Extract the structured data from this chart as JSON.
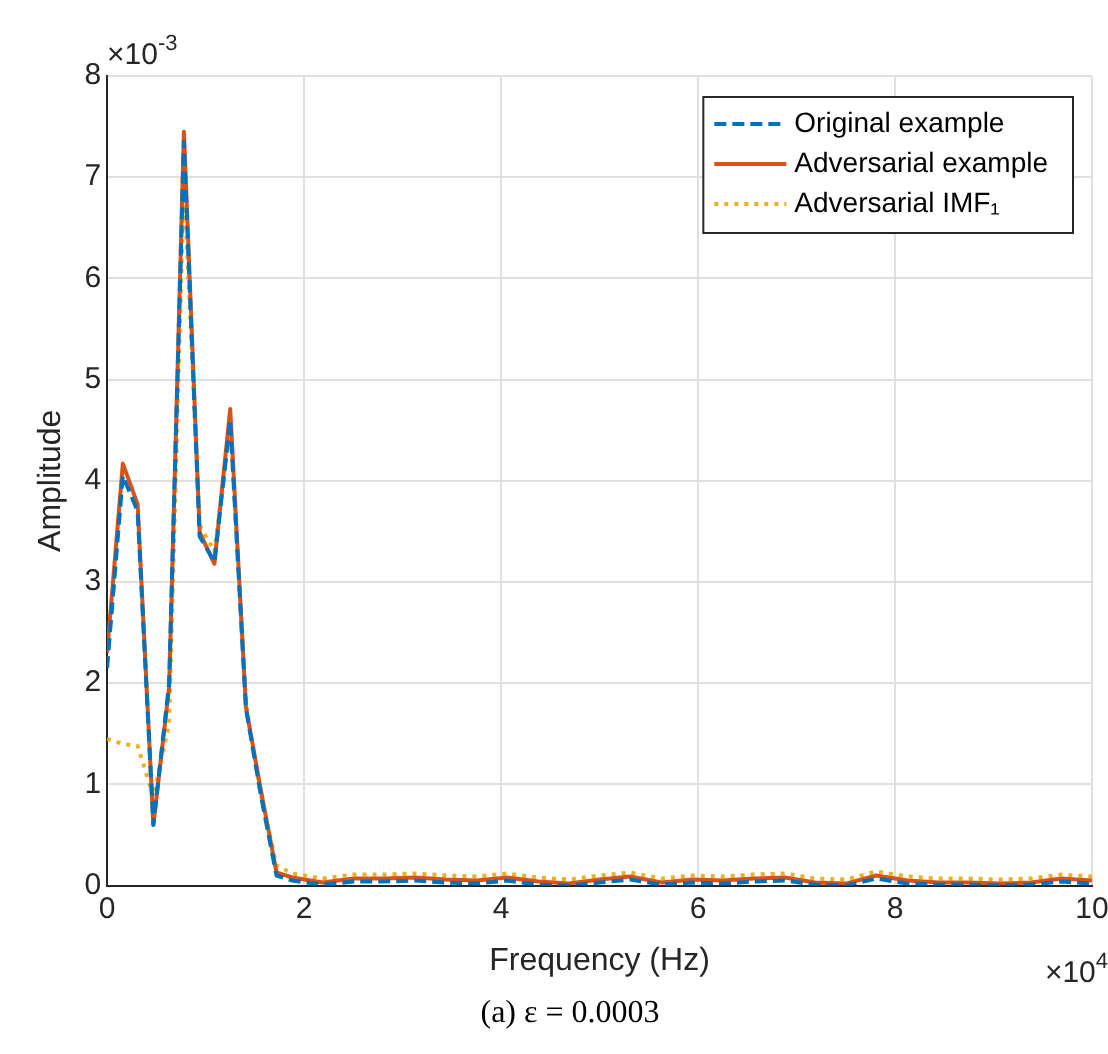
{
  "chart_data": {
    "type": "line",
    "xlabel": "Frequency (Hz)",
    "ylabel": "Amplitude",
    "annotations": [
      "×10$^{-3}$",
      "×10$^{4}$",
      "(a) ε = 0.0003"
    ],
    "x": [
      0,
      0.16,
      0.31,
      0.47,
      0.63,
      0.78,
      0.94,
      1.09,
      1.25,
      1.41,
      1.56,
      1.72,
      1.88,
      2.19,
      2.5,
      2.81,
      3.13,
      3.44,
      3.75,
      4.06,
      4.38,
      4.69,
      5,
      5.31,
      5.63,
      5.94,
      6.25,
      6.56,
      6.88,
      7.19,
      7.5,
      7.81,
      8.13,
      8.44,
      8.75,
      9.06,
      9.38,
      9.69,
      10
    ],
    "series": [
      {
        "name": "Original example",
        "color": "#0072bd",
        "line_style": "dashed",
        "values": [
          2.15,
          4.05,
          3.7,
          0.6,
          2,
          7.35,
          3.45,
          3.2,
          4.6,
          1.75,
          0.9,
          0.1,
          0.05,
          0.01,
          0.04,
          0.04,
          0.05,
          0.03,
          0.02,
          0.05,
          0.01,
          0,
          0.03,
          0.06,
          0.01,
          0.03,
          0.02,
          0.04,
          0.05,
          0.01,
          0,
          0.07,
          0.02,
          0.01,
          0.01,
          0,
          0.01,
          0.04,
          0.02
        ]
      },
      {
        "name": "Adversarial example",
        "color": "#d95319",
        "line_style": "solid",
        "values": [
          2.3,
          4.17,
          3.77,
          0.6,
          1.96,
          7.45,
          3.49,
          3.18,
          4.71,
          1.76,
          0.95,
          0.13,
          0.08,
          0.03,
          0.07,
          0.07,
          0.08,
          0.06,
          0.05,
          0.08,
          0.04,
          0.02,
          0.06,
          0.09,
          0.03,
          0.06,
          0.05,
          0.07,
          0.08,
          0.03,
          0.02,
          0.1,
          0.05,
          0.03,
          0.03,
          0.02,
          0.03,
          0.07,
          0.05
        ]
      },
      {
        "name": "Adversarial IMF₁",
        "color": "#edb120",
        "line_style": "dotted",
        "values": [
          1.45,
          1.4,
          1.38,
          0.88,
          1.6,
          6.98,
          3.56,
          3.3,
          4.55,
          1.8,
          0.9,
          0.2,
          0.12,
          0.07,
          0.11,
          0.11,
          0.12,
          0.1,
          0.09,
          0.12,
          0.08,
          0.06,
          0.1,
          0.13,
          0.07,
          0.1,
          0.09,
          0.11,
          0.12,
          0.07,
          0.06,
          0.14,
          0.09,
          0.07,
          0.07,
          0.06,
          0.07,
          0.11,
          0.09
        ]
      }
    ],
    "xlim": [
      0,
      10
    ],
    "xticks": [
      0,
      2,
      4,
      6,
      8,
      10
    ],
    "ylim": [
      0,
      8
    ],
    "yticks": [
      0,
      1,
      2,
      3,
      4,
      5,
      6,
      7,
      8
    ],
    "grid": true,
    "legend": "top right",
    "marker": "none"
  }
}
